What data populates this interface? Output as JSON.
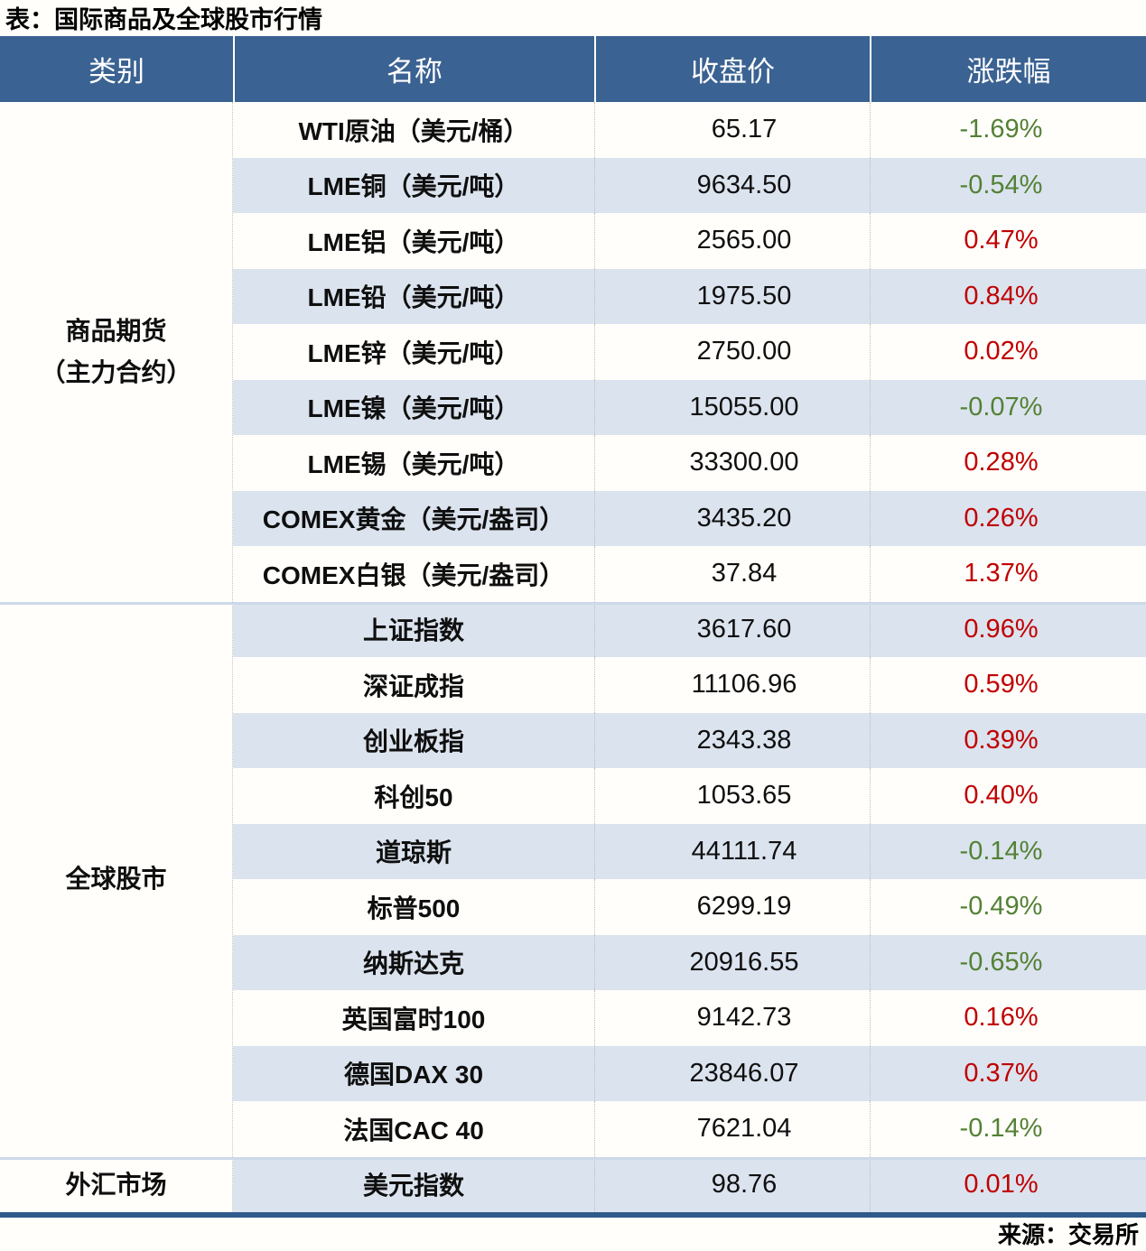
{
  "title": "表：国际商品及全球股市行情",
  "source": "来源：交易所",
  "columns": {
    "category": "类别",
    "name": "名称",
    "close": "收盘价",
    "change": "涨跌幅"
  },
  "colors": {
    "up_red": "#c00000",
    "down_green": "#538135",
    "header_bg": "#3a6292",
    "row_alt": "#dbe3ee",
    "group_separator": "#ccd9e8",
    "bottom_bar": "#2f5a8c"
  },
  "groups": [
    {
      "category_line1": "商品期货",
      "category_line2": "（主力合约）",
      "rows": [
        {
          "name": "WTI原油（美元/桶）",
          "close": "65.17",
          "change": "-1.69%"
        },
        {
          "name": "LME铜（美元/吨）",
          "close": "9634.50",
          "change": "-0.54%"
        },
        {
          "name": "LME铝（美元/吨）",
          "close": "2565.00",
          "change": "0.47%"
        },
        {
          "name": "LME铅（美元/吨）",
          "close": "1975.50",
          "change": "0.84%"
        },
        {
          "name": "LME锌（美元/吨）",
          "close": "2750.00",
          "change": "0.02%"
        },
        {
          "name": "LME镍（美元/吨）",
          "close": "15055.00",
          "change": "-0.07%"
        },
        {
          "name": "LME锡（美元/吨）",
          "close": "33300.00",
          "change": "0.28%"
        },
        {
          "name": "COMEX黄金（美元/盎司）",
          "close": "3435.20",
          "change": "0.26%"
        },
        {
          "name": "COMEX白银（美元/盎司）",
          "close": "37.84",
          "change": "1.37%"
        }
      ]
    },
    {
      "category_line1": "全球股市",
      "category_line2": "",
      "rows": [
        {
          "name": "上证指数",
          "close": "3617.60",
          "change": "0.96%"
        },
        {
          "name": "深证成指",
          "close": "11106.96",
          "change": "0.59%"
        },
        {
          "name": "创业板指",
          "close": "2343.38",
          "change": "0.39%"
        },
        {
          "name": "科创50",
          "close": "1053.65",
          "change": "0.40%"
        },
        {
          "name": "道琼斯",
          "close": "44111.74",
          "change": "-0.14%"
        },
        {
          "name": "标普500",
          "close": "6299.19",
          "change": "-0.49%"
        },
        {
          "name": "纳斯达克",
          "close": "20916.55",
          "change": "-0.65%"
        },
        {
          "name": "英国富时100",
          "close": "9142.73",
          "change": "0.16%"
        },
        {
          "name": "德国DAX 30",
          "close": "23846.07",
          "change": "0.37%"
        },
        {
          "name": "法国CAC 40",
          "close": "7621.04",
          "change": "-0.14%"
        }
      ]
    },
    {
      "category_line1": "外汇市场",
      "category_line2": "",
      "rows": [
        {
          "name": "美元指数",
          "close": "98.76",
          "change": "0.01%"
        }
      ]
    }
  ],
  "chart_data": {
    "type": "table",
    "title": "表：国际商品及全球股市行情",
    "columns": [
      "类别",
      "名称",
      "收盘价",
      "涨跌幅"
    ],
    "rows": [
      [
        "商品期货（主力合约）",
        "WTI原油（美元/桶）",
        65.17,
        "-1.69%"
      ],
      [
        "商品期货（主力合约）",
        "LME铜（美元/吨）",
        9634.5,
        "-0.54%"
      ],
      [
        "商品期货（主力合约）",
        "LME铝（美元/吨）",
        2565.0,
        "0.47%"
      ],
      [
        "商品期货（主力合约）",
        "LME铅（美元/吨）",
        1975.5,
        "0.84%"
      ],
      [
        "商品期货（主力合约）",
        "LME锌（美元/吨）",
        2750.0,
        "0.02%"
      ],
      [
        "商品期货（主力合约）",
        "LME镍（美元/吨）",
        15055.0,
        "-0.07%"
      ],
      [
        "商品期货（主力合约）",
        "LME锡（美元/吨）",
        33300.0,
        "0.28%"
      ],
      [
        "商品期货（主力合约）",
        "COMEX黄金（美元/盎司）",
        3435.2,
        "0.26%"
      ],
      [
        "商品期货（主力合约）",
        "COMEX白银（美元/盎司）",
        37.84,
        "1.37%"
      ],
      [
        "全球股市",
        "上证指数",
        3617.6,
        "0.96%"
      ],
      [
        "全球股市",
        "深证成指",
        11106.96,
        "0.59%"
      ],
      [
        "全球股市",
        "创业板指",
        2343.38,
        "0.39%"
      ],
      [
        "全球股市",
        "科创50",
        1053.65,
        "0.40%"
      ],
      [
        "全球股市",
        "道琼斯",
        44111.74,
        "-0.14%"
      ],
      [
        "全球股市",
        "标普500",
        6299.19,
        "-0.49%"
      ],
      [
        "全球股市",
        "纳斯达克",
        20916.55,
        "-0.65%"
      ],
      [
        "全球股市",
        "英国富时100",
        9142.73,
        "0.16%"
      ],
      [
        "全球股市",
        "德国DAX 30",
        23846.07,
        "0.37%"
      ],
      [
        "全球股市",
        "法国CAC 40",
        7621.04,
        "-0.14%"
      ],
      [
        "外汇市场",
        "美元指数",
        98.76,
        "0.01%"
      ]
    ],
    "source": "来源：交易所",
    "notes": "positive changes red, negative changes green; alternating row shading"
  }
}
